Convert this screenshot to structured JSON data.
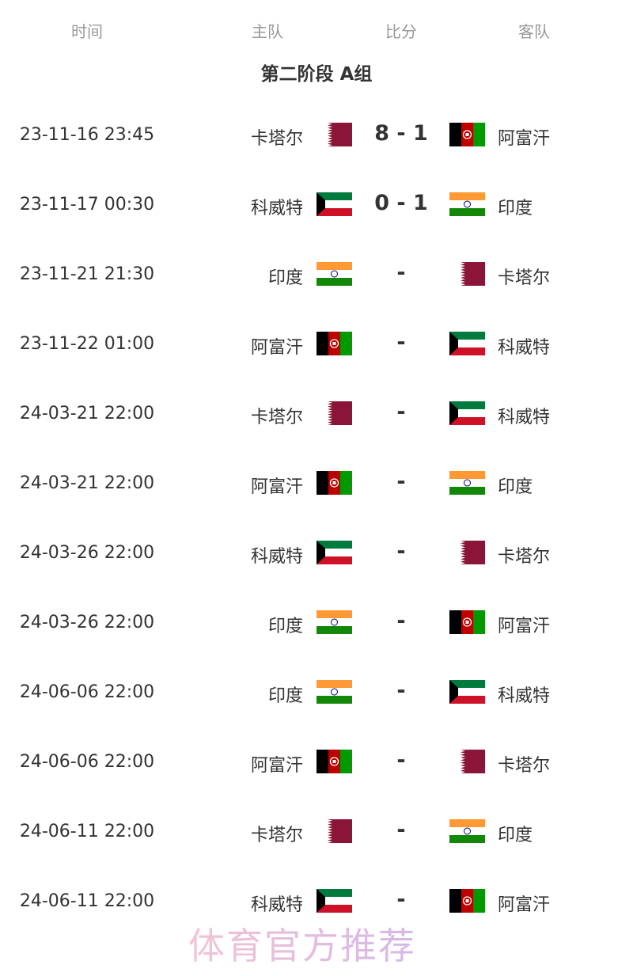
{
  "headers": {
    "time": "时间",
    "home": "主队",
    "score": "比分",
    "away": "客队"
  },
  "group_title": "第二阶段 A组",
  "colors": {
    "qatar": "#8a1538",
    "afghanistan_red": "#be0000",
    "afghanistan_green": "#009900",
    "kuwait_green": "#007a3d",
    "kuwait_red": "#ce1126",
    "india_saffron": "#ff9933",
    "india_green": "#138808"
  },
  "matches": [
    {
      "time": "23-11-16 23:45",
      "home": "卡塔尔",
      "home_flag": "qatar-flag",
      "score": "8 - 1",
      "away": "阿富汗",
      "away_flag": "afghanistan-flag"
    },
    {
      "time": "23-11-17 00:30",
      "home": "科威特",
      "home_flag": "kuwait-flag",
      "score": "0 - 1",
      "away": "印度",
      "away_flag": "india-flag"
    },
    {
      "time": "23-11-21 21:30",
      "home": "印度",
      "home_flag": "india-flag",
      "score": "-",
      "away": "卡塔尔",
      "away_flag": "qatar-flag"
    },
    {
      "time": "23-11-22 01:00",
      "home": "阿富汗",
      "home_flag": "afghanistan-flag",
      "score": "-",
      "away": "科威特",
      "away_flag": "kuwait-flag"
    },
    {
      "time": "24-03-21 22:00",
      "home": "卡塔尔",
      "home_flag": "qatar-flag",
      "score": "-",
      "away": "科威特",
      "away_flag": "kuwait-flag"
    },
    {
      "time": "24-03-21 22:00",
      "home": "阿富汗",
      "home_flag": "afghanistan-flag",
      "score": "-",
      "away": "印度",
      "away_flag": "india-flag"
    },
    {
      "time": "24-03-26 22:00",
      "home": "科威特",
      "home_flag": "kuwait-flag",
      "score": "-",
      "away": "卡塔尔",
      "away_flag": "qatar-flag"
    },
    {
      "time": "24-03-26 22:00",
      "home": "印度",
      "home_flag": "india-flag",
      "score": "-",
      "away": "阿富汗",
      "away_flag": "afghanistan-flag"
    },
    {
      "time": "24-06-06 22:00",
      "home": "印度",
      "home_flag": "india-flag",
      "score": "-",
      "away": "科威特",
      "away_flag": "kuwait-flag"
    },
    {
      "time": "24-06-06 22:00",
      "home": "阿富汗",
      "home_flag": "afghanistan-flag",
      "score": "-",
      "away": "卡塔尔",
      "away_flag": "qatar-flag"
    },
    {
      "time": "24-06-11 22:00",
      "home": "卡塔尔",
      "home_flag": "qatar-flag",
      "score": "-",
      "away": "印度",
      "away_flag": "india-flag"
    },
    {
      "time": "24-06-11 22:00",
      "home": "科威特",
      "home_flag": "kuwait-flag",
      "score": "-",
      "away": "阿富汗",
      "away_flag": "afghanistan-flag"
    }
  ],
  "watermark": "体育官方推荐"
}
